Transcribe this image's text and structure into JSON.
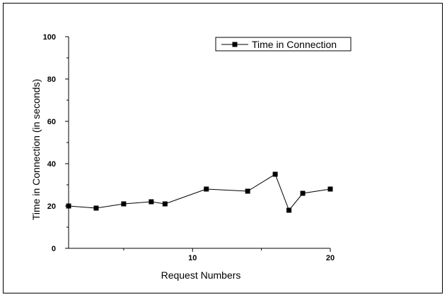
{
  "chart_data": {
    "type": "line",
    "title": "",
    "xlabel": "Request Numbers",
    "ylabel": "Time in Connection (in seconds)",
    "xlim": [
      1,
      20
    ],
    "ylim": [
      0,
      100
    ],
    "x_ticks": [
      10,
      20
    ],
    "y_ticks": [
      0,
      20,
      40,
      60,
      80,
      100
    ],
    "grid": false,
    "legend_position": "top-right",
    "series": [
      {
        "name": "Time in Connection",
        "color": "#000000",
        "marker": "square",
        "x": [
          1,
          3,
          5,
          7,
          8,
          11,
          14,
          16,
          17,
          18,
          20
        ],
        "y": [
          20,
          19,
          21,
          22,
          21,
          28,
          27,
          35,
          18,
          26,
          28
        ]
      }
    ]
  }
}
